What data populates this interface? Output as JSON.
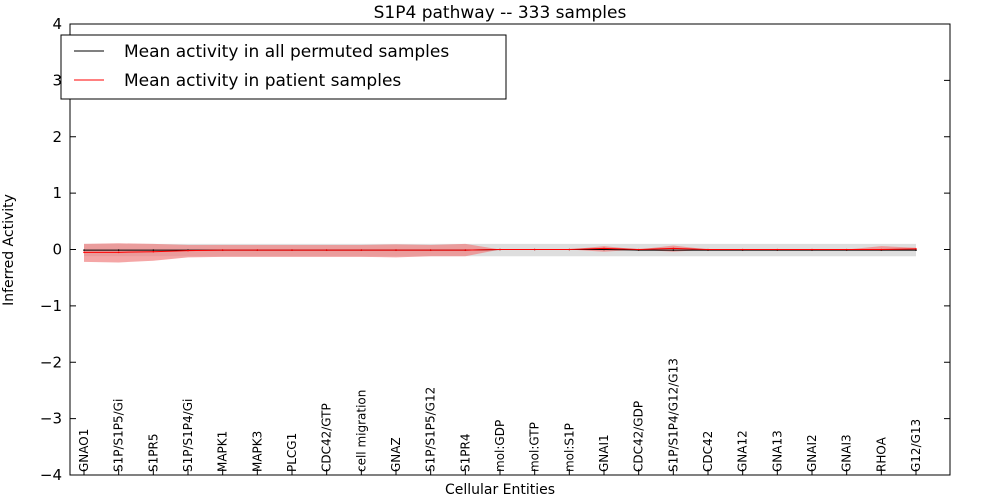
{
  "chart_data": {
    "type": "line",
    "title": "S1P4 pathway -- 333 samples",
    "xlabel": "Cellular Entities",
    "ylabel": "Inferred Activity",
    "ylim": [
      -4,
      4
    ],
    "yticks": [
      4,
      3,
      2,
      1,
      0,
      -1,
      -2,
      -3,
      -4
    ],
    "ytick_labels": [
      "4",
      "3",
      "2",
      "1",
      "0",
      "−1",
      "−2",
      "−3",
      "−4"
    ],
    "grid": false,
    "legend_position": "top-left",
    "categories": [
      "GNAO1",
      "S1P/S1P5/Gi",
      "S1PR5",
      "S1P/S1P4/Gi",
      "MAPK1",
      "MAPK3",
      "PLCG1",
      "CDC42/GTP",
      "cell migration",
      "GNAZ",
      "S1P/S1P5/G12",
      "S1PR4",
      "mol:GDP",
      "mol:GTP",
      "mol:S1P",
      "GNAI1",
      "CDC42/GDP",
      "S1P/S1P4/G12/G13",
      "CDC42",
      "GNA12",
      "GNA13",
      "GNAI2",
      "GNAI3",
      "RHOA",
      "G12/G13"
    ],
    "series": [
      {
        "name": "Mean activity in all permuted samples",
        "color": "#000000",
        "values": [
          -0.01,
          -0.01,
          -0.01,
          -0.01,
          -0.01,
          -0.01,
          -0.01,
          -0.01,
          -0.01,
          -0.01,
          -0.01,
          -0.01,
          0.0,
          0.0,
          0.0,
          0.0,
          -0.01,
          -0.01,
          -0.01,
          -0.01,
          -0.01,
          -0.01,
          -0.01,
          -0.01,
          -0.01
        ],
        "band_upper": [
          0.1,
          0.1,
          0.1,
          0.1,
          0.1,
          0.1,
          0.1,
          0.1,
          0.1,
          0.1,
          0.1,
          0.1,
          0.1,
          0.1,
          0.1,
          0.1,
          0.1,
          0.1,
          0.1,
          0.1,
          0.1,
          0.1,
          0.1,
          0.1,
          0.1
        ],
        "band_lower": [
          -0.12,
          -0.12,
          -0.12,
          -0.12,
          -0.12,
          -0.12,
          -0.12,
          -0.12,
          -0.12,
          -0.12,
          -0.12,
          -0.12,
          -0.12,
          -0.12,
          -0.12,
          -0.12,
          -0.12,
          -0.12,
          -0.12,
          -0.12,
          -0.12,
          -0.12,
          -0.12,
          -0.12,
          -0.12
        ],
        "band_color": "#c8c8c8"
      },
      {
        "name": "Mean activity in patient samples",
        "color": "#ff0000",
        "values": [
          -0.05,
          -0.05,
          -0.04,
          -0.02,
          -0.01,
          -0.01,
          -0.01,
          -0.01,
          -0.01,
          -0.01,
          -0.01,
          -0.01,
          0.0,
          0.0,
          0.0,
          0.02,
          0.0,
          0.02,
          0.0,
          0.0,
          0.0,
          0.0,
          0.0,
          0.0,
          0.01
        ],
        "band_upper": [
          0.1,
          0.11,
          0.1,
          0.08,
          0.08,
          0.08,
          0.08,
          0.08,
          0.08,
          0.09,
          0.08,
          0.1,
          0.0,
          0.0,
          0.0,
          0.06,
          0.0,
          0.07,
          0.0,
          0.0,
          0.0,
          0.0,
          0.0,
          0.06,
          0.03
        ],
        "band_lower": [
          -0.22,
          -0.23,
          -0.2,
          -0.14,
          -0.13,
          -0.13,
          -0.13,
          -0.13,
          -0.13,
          -0.14,
          -0.12,
          -0.12,
          0.0,
          0.0,
          0.0,
          -0.04,
          0.0,
          -0.04,
          0.0,
          0.0,
          0.0,
          0.0,
          0.0,
          -0.02,
          0.0
        ],
        "band_color": "#f08080"
      }
    ]
  }
}
